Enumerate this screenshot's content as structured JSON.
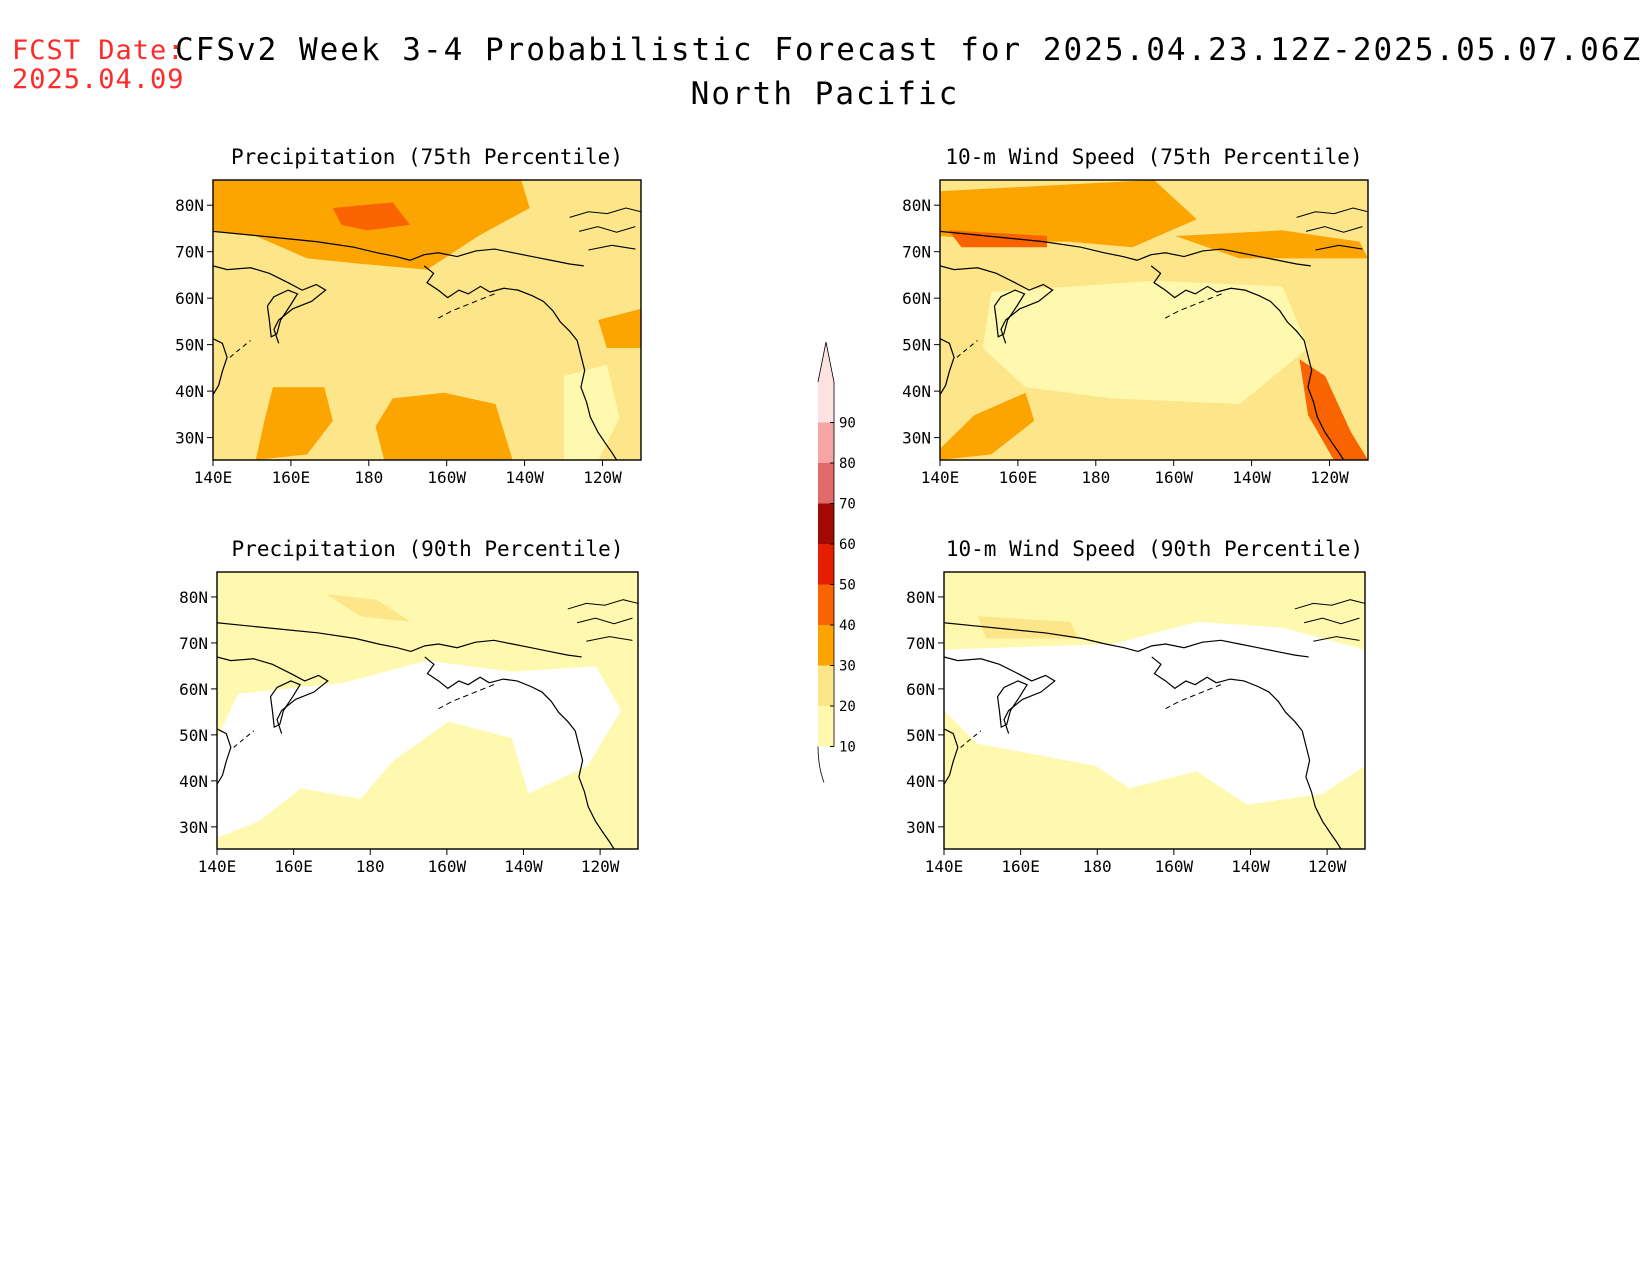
{
  "header": {
    "fcst_label": "FCST Date:",
    "fcst_date": "2025.04.09",
    "title": "CFSv2 Week 3-4 Probabilistic Forecast for 2025.04.23.12Z-2025.05.07.06Z",
    "region": "North Pacific"
  },
  "panels": [
    {
      "id": "precip-75",
      "title": "Precipitation (75th Percentile)"
    },
    {
      "id": "wind-75",
      "title": "10-m Wind Speed (75th Percentile)"
    },
    {
      "id": "precip-90",
      "title": "Precipitation (90th Percentile)"
    },
    {
      "id": "wind-90",
      "title": "10-m Wind Speed (90th Percentile)"
    }
  ],
  "axes": {
    "lat_ticks": [
      "80N",
      "70N",
      "60N",
      "50N",
      "40N",
      "30N"
    ],
    "lon_ticks": [
      "140E",
      "160E",
      "180",
      "160W",
      "140W",
      "120W"
    ]
  },
  "colorbar": {
    "levels": [
      "10",
      "20",
      "30",
      "40",
      "50",
      "60",
      "70",
      "80",
      "90"
    ],
    "colors": [
      "#fff9b0",
      "#fde58a",
      "#fca400",
      "#fa6400",
      "#e61e00",
      "#a00a00",
      "#e06a6a",
      "#f6a4a4",
      "#fde2e2"
    ]
  }
}
